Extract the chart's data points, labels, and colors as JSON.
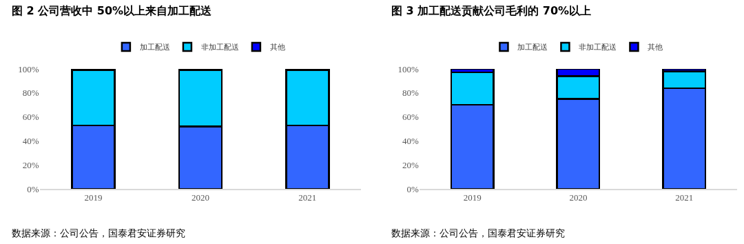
{
  "chart_data": [
    {
      "type": "bar",
      "title": "图 2 公司营收中 50%以上来自加工配送",
      "categories": [
        "2019",
        "2020",
        "2021"
      ],
      "stacked": true,
      "legend": "top",
      "grid": false,
      "ylim": [
        0,
        100
      ],
      "yticks": [
        {
          "value": 0,
          "label": "0%"
        },
        {
          "value": 20,
          "label": "20%"
        },
        {
          "value": 40,
          "label": "40%"
        },
        {
          "value": 60,
          "label": "60%"
        },
        {
          "value": 80,
          "label": "80%"
        },
        {
          "value": 100,
          "label": "100%"
        }
      ],
      "series": [
        {
          "name": "加工配送",
          "color": "#3366ff",
          "values": [
            53,
            52,
            53
          ]
        },
        {
          "name": "非加工配送",
          "color": "#00ccff",
          "values": [
            46,
            47,
            46
          ]
        },
        {
          "name": "其他",
          "color": "#0000ff",
          "values": [
            null,
            null,
            null
          ]
        }
      ],
      "annotations": [
        "数据来源：公司公告，国泰君安证券研究"
      ]
    },
    {
      "type": "bar",
      "title": "图 3 加工配送贡献公司毛利的 70%以上",
      "categories": [
        "2019",
        "2020",
        "2021"
      ],
      "stacked": true,
      "legend": "top",
      "grid": false,
      "ylim": [
        0,
        100
      ],
      "yticks": [
        {
          "value": 0,
          "label": "0%"
        },
        {
          "value": 20,
          "label": "20%"
        },
        {
          "value": 40,
          "label": "40%"
        },
        {
          "value": 60,
          "label": "60%"
        },
        {
          "value": 80,
          "label": "80%"
        },
        {
          "value": 100,
          "label": "100%"
        }
      ],
      "series": [
        {
          "name": "加工配送",
          "color": "#3366ff",
          "values": [
            70,
            75,
            84
          ]
        },
        {
          "name": "非加工配送",
          "color": "#00ccff",
          "values": [
            27,
            19,
            14
          ]
        },
        {
          "name": "其他",
          "color": "#0000ff",
          "values": [
            3,
            6,
            2
          ]
        }
      ],
      "annotations": [
        "数据来源：公司公告，国泰君安证券研究"
      ]
    }
  ]
}
